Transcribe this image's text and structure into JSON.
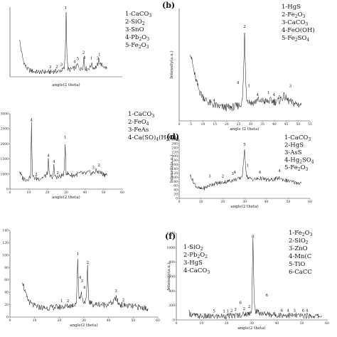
{
  "figure": {
    "caption": ""
  },
  "chart_data": [
    {
      "type": "line",
      "panel": "a",
      "letter": "",
      "xlabel": "angle(2 theta)",
      "ylabel": "",
      "xlim": [
        0,
        60
      ],
      "ylim": [
        0,
        100
      ],
      "xticks": [],
      "yticks": [],
      "legend": [
        "1-CaCO3",
        "2-SiO2",
        "3-SnO",
        "4-Pb2O3",
        "5-Fe2O3"
      ],
      "legend_position": "top-right",
      "series": [
        {
          "x": [
            5,
            6,
            7,
            8,
            9,
            10,
            12,
            14,
            16,
            18,
            20,
            22,
            24,
            26,
            27,
            28,
            29,
            29.5,
            30,
            30.5,
            31,
            32,
            34,
            35.5,
            36,
            37,
            38,
            39,
            39.5,
            40,
            41,
            42,
            43,
            43.5,
            44,
            45,
            46,
            47,
            47.5,
            48,
            49,
            50,
            51,
            52
          ],
          "y": [
            55,
            38,
            25,
            17,
            12,
            10,
            8,
            7,
            7,
            7,
            7,
            7,
            8,
            8,
            9,
            10,
            12,
            30,
            92,
            26,
            11,
            10,
            12,
            14,
            18,
            12,
            11,
            14,
            28,
            13,
            11,
            12,
            14,
            20,
            14,
            13,
            14,
            18,
            25,
            20,
            17,
            15,
            13,
            12
          ]
        }
      ],
      "peak_labels": [
        {
          "x": 21.5,
          "y": 12,
          "label": "3"
        },
        {
          "x": 25,
          "y": 13,
          "label": "2"
        },
        {
          "x": 27.5,
          "y": 16,
          "label": "3"
        },
        {
          "x": 29.8,
          "y": 97,
          "label": "1"
        },
        {
          "x": 34.5,
          "y": 20,
          "label": "4"
        },
        {
          "x": 36.2,
          "y": 24,
          "label": "5"
        },
        {
          "x": 39.3,
          "y": 33,
          "label": "2"
        },
        {
          "x": 39.8,
          "y": 26,
          "label": "4"
        },
        {
          "x": 43.5,
          "y": 25,
          "label": "1"
        },
        {
          "x": 46.8,
          "y": 25,
          "label": "3"
        },
        {
          "x": 47.8,
          "y": 30,
          "label": "1"
        }
      ]
    },
    {
      "type": "line",
      "panel": "b",
      "letter": "(b)",
      "xlabel": "angle (2 theta)",
      "ylabel": "Intensity(a.u.)",
      "xlim": [
        0,
        60
      ],
      "ylim": [
        0,
        100
      ],
      "xticks": [
        "0",
        "5",
        "10",
        "15",
        "20",
        "25",
        "30",
        "35",
        "40",
        "45",
        "50",
        "55"
      ],
      "yticks": [],
      "legend": [
        "1-HgS",
        "2-Fe2O3",
        "3-CaCO3",
        "4-FeO(OH)",
        "5-Fe2SO4"
      ],
      "legend_position": "top-right",
      "series": [
        {
          "x": [
            5,
            6,
            7,
            8,
            9,
            10,
            12,
            14,
            16,
            18,
            20,
            22,
            24,
            26,
            28,
            29,
            29.5,
            30,
            30.5,
            31,
            32,
            33,
            35,
            36,
            37,
            38,
            40,
            42,
            44,
            46,
            48,
            50,
            52,
            54,
            56
          ],
          "y": [
            62,
            52,
            42,
            34,
            28,
            24,
            19,
            16,
            14,
            13,
            12,
            12,
            12,
            13,
            14,
            18,
            40,
            78,
            36,
            20,
            18,
            16,
            17,
            20,
            16,
            18,
            17,
            18,
            17,
            18,
            22,
            18,
            16,
            15,
            14
          ]
        }
      ],
      "peak_labels": [
        {
          "x": 16,
          "y": 17,
          "label": "4"
        },
        {
          "x": 27,
          "y": 33,
          "label": "4"
        },
        {
          "x": 30,
          "y": 83,
          "label": "2"
        },
        {
          "x": 32,
          "y": 30,
          "label": "1"
        },
        {
          "x": 36,
          "y": 22,
          "label": "4"
        },
        {
          "x": 41,
          "y": 24,
          "label": "1"
        },
        {
          "x": 43.5,
          "y": 22,
          "label": "4"
        },
        {
          "x": 46,
          "y": 20,
          "label": "5"
        },
        {
          "x": 51,
          "y": 30,
          "label": "3"
        }
      ]
    },
    {
      "type": "line",
      "panel": "c",
      "letter": "",
      "xlabel": "angle(2 theta)",
      "ylabel": "",
      "xlim": [
        0,
        60
      ],
      "ylim": [
        0,
        100
      ],
      "xticks": [
        "0",
        "10",
        "20",
        "30",
        "40",
        "50",
        "60"
      ],
      "yticks": [
        "0",
        "1000",
        "1500",
        "2000",
        "2500",
        "3000"
      ],
      "legend": [
        "1-CaCO3",
        "2-FeO4",
        "3-FeAs",
        "4-Ca(SO)4(H2O)2"
      ],
      "legend_position": "top-right",
      "series": [
        {
          "x": [
            5,
            6,
            7,
            8,
            9,
            10,
            11,
            11.5,
            12,
            13,
            14,
            16,
            18,
            20,
            20.5,
            21,
            22,
            23,
            23.5,
            24,
            26,
            28,
            29,
            29.5,
            30,
            31,
            32,
            34,
            36,
            38,
            40,
            42,
            44,
            46,
            48,
            50,
            52
          ],
          "y": [
            25,
            18,
            14,
            13,
            13,
            14,
            17,
            85,
            18,
            15,
            14,
            14,
            16,
            20,
            38,
            18,
            16,
            17,
            30,
            17,
            16,
            18,
            22,
            62,
            22,
            20,
            19,
            18,
            20,
            21,
            20,
            22,
            21,
            24,
            22,
            20,
            19
          ]
        }
      ],
      "peak_labels": [
        {
          "x": 11.5,
          "y": 90,
          "label": "4"
        },
        {
          "x": 14,
          "y": 18,
          "label": "2"
        },
        {
          "x": 20.5,
          "y": 43,
          "label": "4"
        },
        {
          "x": 23.5,
          "y": 35,
          "label": "4"
        },
        {
          "x": 25.5,
          "y": 20,
          "label": "2"
        },
        {
          "x": 29.5,
          "y": 67,
          "label": "1"
        },
        {
          "x": 44.5,
          "y": 27,
          "label": "3"
        },
        {
          "x": 47.5,
          "y": 30,
          "label": "2"
        }
      ]
    },
    {
      "type": "line",
      "panel": "d",
      "letter": "(d)",
      "xlabel": "angle(2 theta)",
      "ylabel": "Intensity(a.u.)",
      "xlim": [
        0,
        60
      ],
      "ylim": [
        0,
        280
      ],
      "xticks": [
        "0",
        "10",
        "20",
        "30",
        "40",
        "50",
        "60"
      ],
      "yticks": [
        "0",
        "20",
        "40",
        "60",
        "80",
        "100",
        "120",
        "140",
        "160",
        "180",
        "200",
        "220",
        "240",
        "260",
        "280"
      ],
      "legend": [
        "1-CaCO3",
        "2-HgS",
        "3-AsS",
        "4-Hg2SO4",
        "5-Fe2O3"
      ],
      "legend_position": "top-right",
      "series": [
        {
          "x": [
            5,
            6,
            7,
            8,
            9,
            10,
            12,
            14,
            16,
            18,
            20,
            22,
            24,
            26,
            28,
            29,
            29.5,
            30,
            30.5,
            31,
            32,
            34,
            36,
            38,
            40,
            42,
            44,
            46,
            48,
            50,
            52,
            54,
            56
          ],
          "y": [
            110,
            90,
            70,
            55,
            48,
            45,
            50,
            62,
            70,
            72,
            76,
            80,
            85,
            90,
            95,
            110,
            160,
            240,
            150,
            105,
            95,
            90,
            92,
            95,
            88,
            86,
            92,
            96,
            88,
            82,
            78,
            74,
            72
          ]
        }
      ],
      "peak_labels": [
        {
          "x": 14,
          "y": 100,
          "label": "3"
        },
        {
          "x": 20,
          "y": 100,
          "label": "2"
        },
        {
          "x": 24.5,
          "y": 112,
          "label": "3"
        },
        {
          "x": 25.5,
          "y": 118,
          "label": "4"
        },
        {
          "x": 30,
          "y": 250,
          "label": "5"
        },
        {
          "x": 31.5,
          "y": 150,
          "label": "1"
        },
        {
          "x": 37,
          "y": 118,
          "label": "4"
        },
        {
          "x": 46,
          "y": 125,
          "label": "4"
        }
      ]
    },
    {
      "type": "line",
      "panel": "e",
      "letter": "",
      "xlabel": "angle(2 theta)",
      "ylabel": "",
      "xlim": [
        0,
        60
      ],
      "ylim": [
        0,
        140
      ],
      "xticks": [
        "0",
        "10",
        "20",
        "30",
        "40",
        "50",
        "60"
      ],
      "yticks": [
        "0",
        "20",
        "40",
        "60",
        "80",
        "100",
        "120",
        "140"
      ],
      "legend": [
        "1-SiO2",
        "2-Pb2O2",
        "3-HgS",
        "4-CaCO3"
      ],
      "legend_position": "top-right",
      "series": [
        {
          "x": [
            5,
            6,
            7,
            8,
            9,
            10,
            12,
            14,
            16,
            18,
            20,
            22,
            24,
            26,
            27,
            27.5,
            28,
            29,
            29.5,
            30,
            31,
            31.5,
            32,
            33,
            34,
            36,
            38,
            40,
            42,
            43,
            44,
            45,
            46,
            48,
            50,
            52,
            54,
            56
          ],
          "y": [
            60,
            42,
            30,
            24,
            20,
            18,
            16,
            15,
            15,
            16,
            16,
            17,
            18,
            20,
            24,
            95,
            30,
            38,
            28,
            24,
            28,
            80,
            26,
            22,
            20,
            21,
            20,
            21,
            24,
            32,
            22,
            20,
            19,
            18,
            17,
            16,
            15,
            14
          ]
        }
      ],
      "peak_labels": [
        {
          "x": 21,
          "y": 24,
          "label": "1"
        },
        {
          "x": 23.5,
          "y": 24,
          "label": "2"
        },
        {
          "x": 27.5,
          "y": 100,
          "label": "1"
        },
        {
          "x": 28.5,
          "y": 62,
          "label": "4"
        },
        {
          "x": 29.2,
          "y": 56,
          "label": "3"
        },
        {
          "x": 30.2,
          "y": 46,
          "label": "4"
        },
        {
          "x": 31.5,
          "y": 86,
          "label": "2"
        },
        {
          "x": 43,
          "y": 40,
          "label": "3"
        },
        {
          "x": 46,
          "y": 26,
          "label": "2"
        }
      ]
    },
    {
      "type": "line",
      "panel": "f",
      "letter": "(f)",
      "xlabel": "angle(2 theta)",
      "ylabel": "Intensity(a.u.)",
      "xlim": [
        0,
        60
      ],
      "ylim": [
        0,
        1300
      ],
      "xticks": [
        "0",
        "10",
        "20",
        "30",
        "40",
        "50",
        "60"
      ],
      "yticks": [
        "0",
        "200",
        "400",
        "600",
        "800",
        "1000",
        "1200"
      ],
      "legend": [
        "1-Fe2O3",
        "2-SiO2",
        "3-ZnO",
        "4-Mn(C",
        "5-TiO",
        "6-CaCC"
      ],
      "legend_position": "top-right",
      "series": [
        {
          "x": [
            5,
            6,
            7,
            8,
            10,
            12,
            14,
            16,
            18,
            20,
            22,
            24,
            26,
            28,
            29,
            30,
            30.5,
            31,
            31.5,
            32,
            34,
            36,
            38,
            40,
            42,
            44,
            46,
            48,
            50,
            52,
            54,
            56,
            58
          ],
          "y": [
            110,
            80,
            70,
            60,
            55,
            52,
            50,
            52,
            55,
            58,
            60,
            70,
            80,
            90,
            100,
            140,
            1200,
            260,
            140,
            120,
            100,
            90,
            80,
            76,
            74,
            70,
            68,
            66,
            64,
            62,
            60,
            58,
            56
          ]
        }
      ],
      "peak_labels": [
        {
          "x": 15,
          "y": 110,
          "label": "5"
        },
        {
          "x": 19,
          "y": 110,
          "label": "1"
        },
        {
          "x": 20.5,
          "y": 110,
          "label": "1"
        },
        {
          "x": 22,
          "y": 120,
          "label": "2"
        },
        {
          "x": 23.5,
          "y": 140,
          "label": "3"
        },
        {
          "x": 25.5,
          "y": 240,
          "label": "6"
        },
        {
          "x": 27,
          "y": 150,
          "label": "2"
        },
        {
          "x": 29,
          "y": 180,
          "label": "2"
        },
        {
          "x": 30.5,
          "y": 1230,
          "label": "8"
        },
        {
          "x": 36,
          "y": 350,
          "label": "6"
        },
        {
          "x": 42,
          "y": 120,
          "label": "6"
        },
        {
          "x": 44.5,
          "y": 120,
          "label": "4"
        },
        {
          "x": 47,
          "y": 120,
          "label": "3"
        },
        {
          "x": 50.5,
          "y": 120,
          "label": "6"
        },
        {
          "x": 52,
          "y": 120,
          "label": "4"
        }
      ]
    }
  ]
}
